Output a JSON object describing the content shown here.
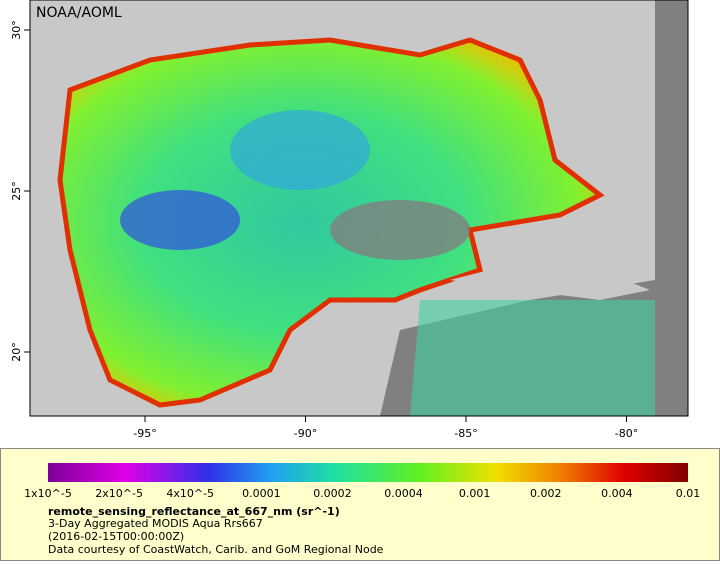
{
  "header": {
    "label": "NOAA/AOML"
  },
  "map": {
    "lon_ticks": [
      "-95°",
      "-90°",
      "-85°",
      "-80°"
    ],
    "lat_ticks": [
      "30°",
      "25°",
      "20°"
    ]
  },
  "legend": {
    "ticks": [
      "1x10^-5",
      "2x10^-5",
      "4x10^-5",
      "0.0001",
      "0.0002",
      "0.0004",
      "0.001",
      "0.002",
      "0.004",
      "0.01"
    ],
    "title": "remote_sensing_reflectance_at_667_nm (sr^-1)",
    "lines": [
      "3-Day Aggregated MODIS Aqua Rrs667",
      "(2016-02-15T00:00:00Z)",
      "Data courtesy of CoastWatch, Carib. and GoM Regional Node"
    ]
  }
}
